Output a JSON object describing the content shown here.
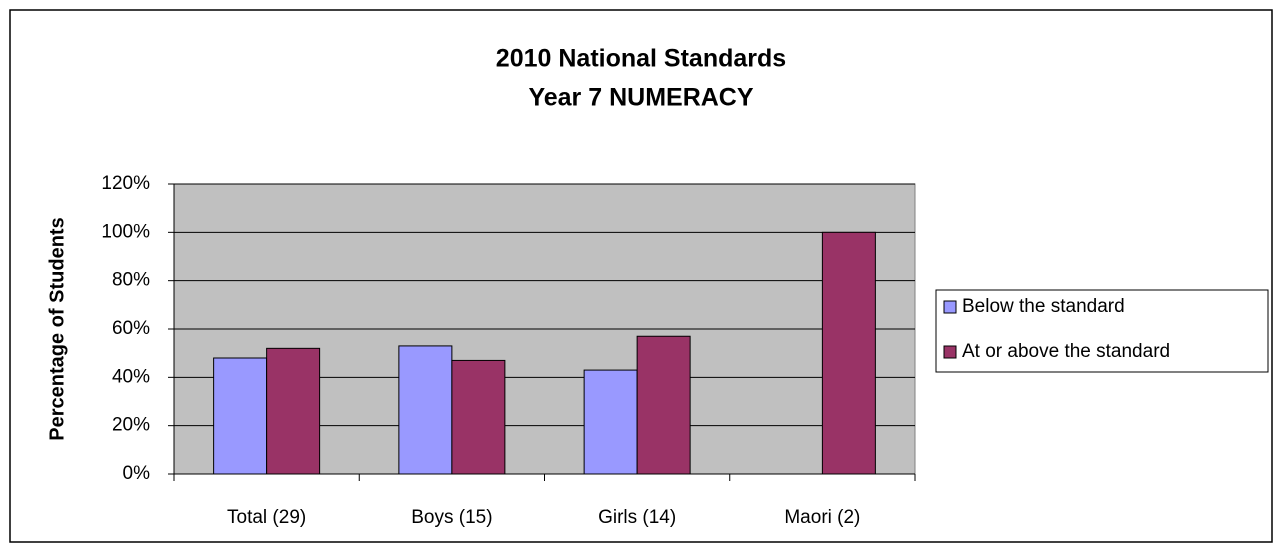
{
  "chart_data": {
    "type": "bar",
    "title": "2010 National Standards",
    "subtitle": "Year 7 NUMERACY",
    "y_label": "Percentage of Students",
    "categories": [
      "Total (29)",
      "Boys (15)",
      "Girls (14)",
      "Maori (2)"
    ],
    "series": [
      {
        "name": "Below the standard",
        "color": "#9999ff",
        "values": [
          48,
          53,
          43,
          0
        ]
      },
      {
        "name": "At or above the standard",
        "color": "#993366",
        "values": [
          52,
          47,
          57,
          100
        ]
      }
    ],
    "ylim": [
      0,
      120
    ],
    "yticks": [
      {
        "value": 0,
        "label": "0%"
      },
      {
        "value": 20,
        "label": "20%"
      },
      {
        "value": 40,
        "label": "40%"
      },
      {
        "value": 60,
        "label": "60%"
      },
      {
        "value": 80,
        "label": "80%"
      },
      {
        "value": 100,
        "label": "100%"
      },
      {
        "value": 120,
        "label": "120%"
      }
    ],
    "grid": true,
    "legend": "right"
  }
}
